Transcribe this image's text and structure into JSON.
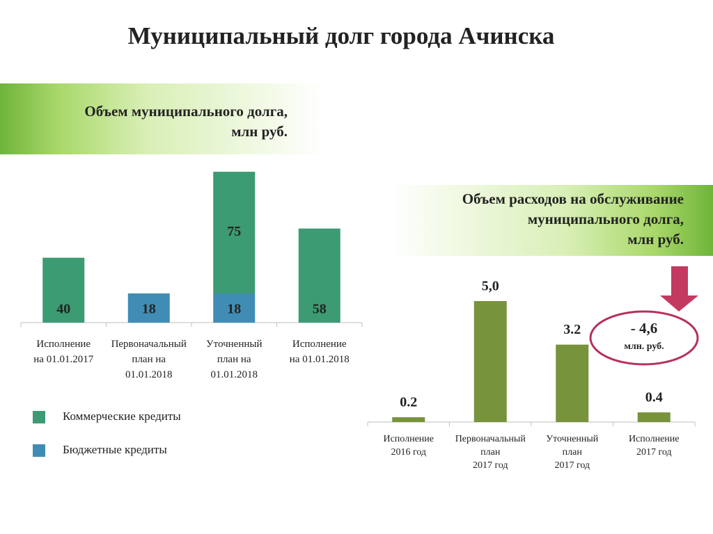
{
  "title": "Муниципальный долг города Ачинска",
  "chart_data": [
    {
      "type": "stacked-bar",
      "title": "Объем муниципального долга,\nмлн руб.",
      "categories": [
        "Исполнение\nна 01.01.2017",
        "Первоначальный\nплан на\n01.01.2018",
        "Уточненный\nплан на\n01.01.2018",
        "Исполнение\nна 01.01.2018"
      ],
      "series": [
        {
          "name": "Коммерческие кредиты",
          "color": "#3c9b73",
          "values": [
            40,
            null,
            75,
            58
          ]
        },
        {
          "name": "Бюджетные кредиты",
          "color": "#3f8db5",
          "values": [
            null,
            18,
            18,
            null
          ]
        }
      ],
      "legend": "bottom-left"
    },
    {
      "type": "bar",
      "title": "Объем расходов на обслуживание\nмуниципального долга,\nмлн руб.",
      "categories": [
        "Исполнение\n2016 год",
        "Первоначальный\nплан\n2017 год",
        "Уточненный\nплан\n2017 год",
        "Исполнение\n2017 год"
      ],
      "values": [
        0.2,
        5.0,
        3.2,
        0.4
      ],
      "value_labels": [
        "0.2",
        "5,0",
        "3.2",
        "0.4"
      ],
      "color": "#77933c",
      "annotation": {
        "value": "- 4,6",
        "unit": "млн. руб."
      }
    }
  ]
}
